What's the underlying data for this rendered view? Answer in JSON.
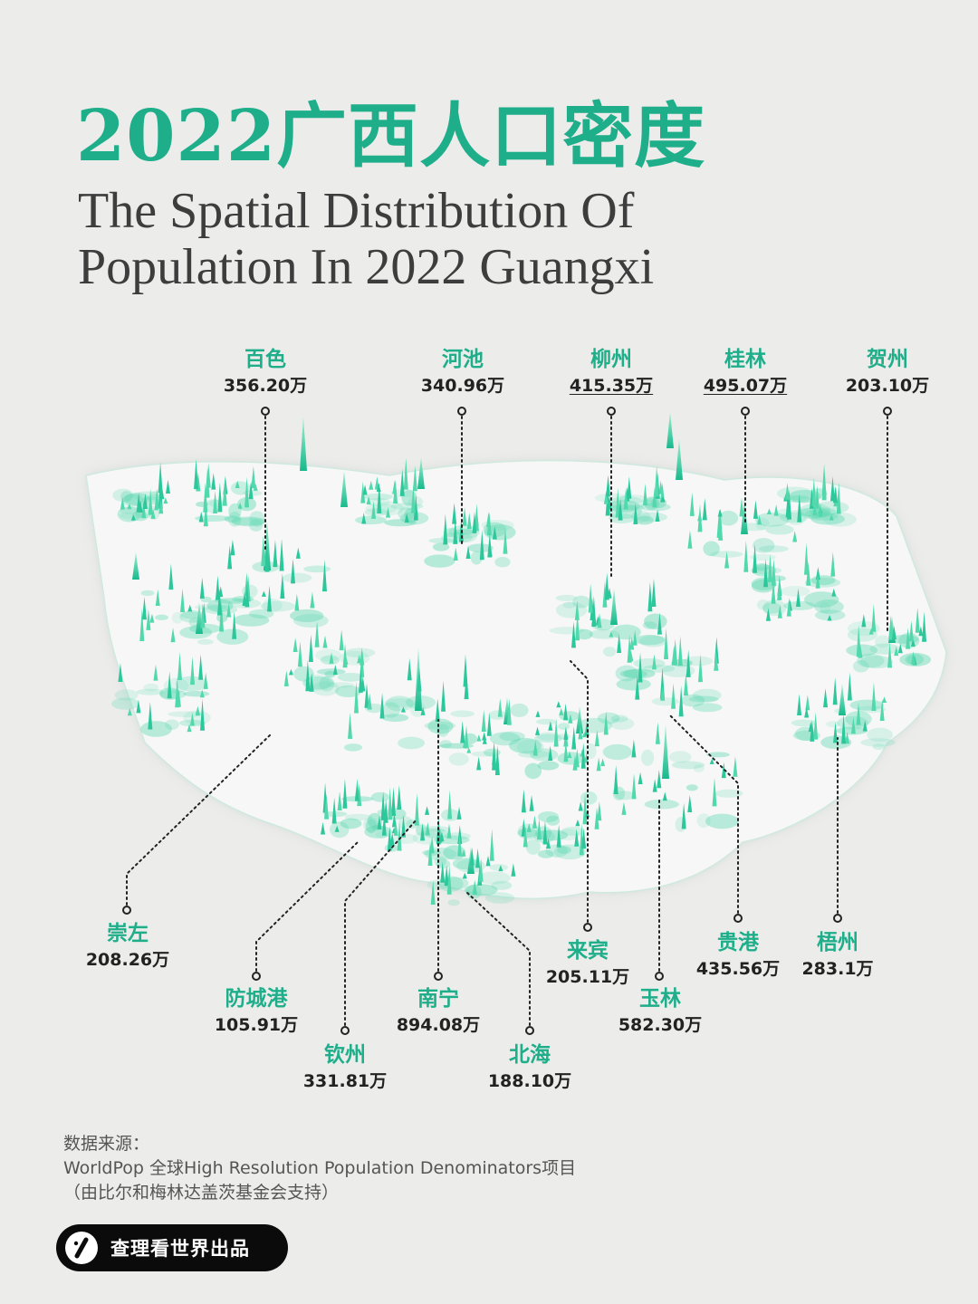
{
  "title": {
    "cn": "2022广西人口密度",
    "en_line1": "The Spatial Distribution Of",
    "en_line2": "Population In 2022 Guangxi"
  },
  "colors": {
    "accent": "#1fae8a",
    "background": "#ececeb",
    "text": "#222222"
  },
  "cities": [
    {
      "id": "baise",
      "name": "百色",
      "value": "356.20万"
    },
    {
      "id": "hechi",
      "name": "河池",
      "value": "340.96万"
    },
    {
      "id": "liuzhou",
      "name": "柳州",
      "value": "415.35万"
    },
    {
      "id": "guilin",
      "name": "桂林",
      "value": "495.07万"
    },
    {
      "id": "hezhou",
      "name": "贺州",
      "value": "203.10万"
    },
    {
      "id": "chongzuo",
      "name": "崇左",
      "value": "208.26万"
    },
    {
      "id": "fangchenggang",
      "name": "防城港",
      "value": "105.91万"
    },
    {
      "id": "qinzhou",
      "name": "钦州",
      "value": "331.81万"
    },
    {
      "id": "nanning",
      "name": "南宁",
      "value": "894.08万"
    },
    {
      "id": "beihai",
      "name": "北海",
      "value": "188.10万"
    },
    {
      "id": "laibin",
      "name": "来宾",
      "value": "205.11万"
    },
    {
      "id": "yulin",
      "name": "玉林",
      "value": "582.30万"
    },
    {
      "id": "guigang",
      "name": "贵港",
      "value": "435.56万"
    },
    {
      "id": "wuzhou",
      "name": "梧州",
      "value": "283.1万"
    }
  ],
  "source": {
    "label": "数据来源：",
    "line1": "WorldPop 全球High Resolution Population Denominators项目",
    "line2": "（由比尔和梅林达盖茨基金会支持）"
  },
  "brand": {
    "text": "查理看世界出品",
    "icon": "slash-logo-icon"
  }
}
